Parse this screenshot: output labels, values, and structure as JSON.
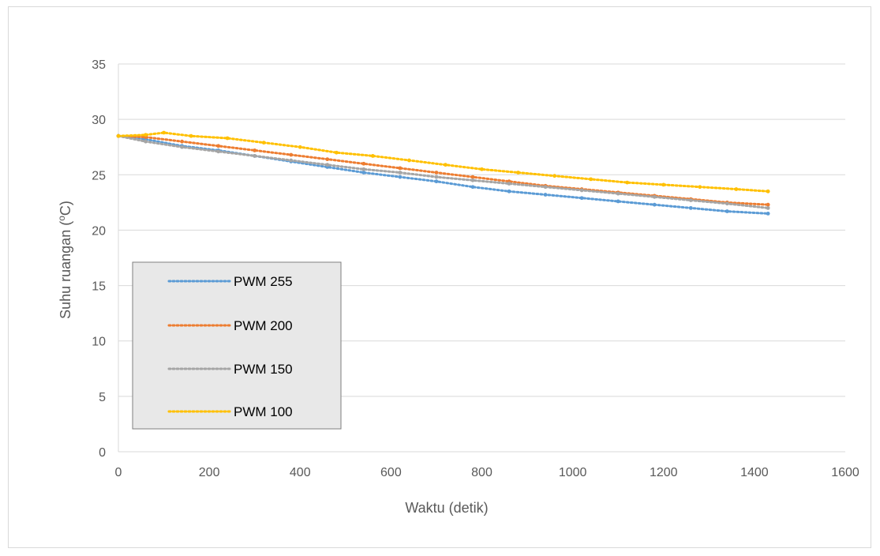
{
  "chart_data": {
    "type": "scatter",
    "title": "",
    "xlabel": "Waktu (detik)",
    "ylabel_parts": [
      "Suhu ruangan (",
      "o",
      "C)"
    ],
    "xlim": [
      0,
      1600
    ],
    "ylim": [
      0,
      35
    ],
    "xticks": [
      0,
      200,
      400,
      600,
      800,
      1000,
      1200,
      1400,
      1600
    ],
    "yticks": [
      0,
      5,
      10,
      15,
      20,
      25,
      30,
      35
    ],
    "grid": "horizontal",
    "legend_position": "left-middle",
    "series": [
      {
        "name": "PWM 255",
        "color": "#5b9bd5",
        "x": [
          0,
          60,
          140,
          220,
          300,
          380,
          460,
          540,
          620,
          700,
          780,
          860,
          940,
          1020,
          1100,
          1180,
          1260,
          1340,
          1430
        ],
        "y": [
          28.5,
          28.2,
          27.6,
          27.2,
          26.7,
          26.2,
          25.7,
          25.2,
          24.8,
          24.4,
          23.9,
          23.5,
          23.2,
          22.9,
          22.6,
          22.3,
          22.0,
          21.7,
          21.5
        ]
      },
      {
        "name": "PWM 200",
        "color": "#ed7d31",
        "x": [
          0,
          60,
          140,
          220,
          300,
          380,
          460,
          540,
          620,
          700,
          780,
          860,
          940,
          1020,
          1100,
          1180,
          1260,
          1340,
          1430
        ],
        "y": [
          28.5,
          28.4,
          28.0,
          27.6,
          27.2,
          26.8,
          26.4,
          26.0,
          25.6,
          25.2,
          24.8,
          24.4,
          24.0,
          23.7,
          23.4,
          23.1,
          22.8,
          22.5,
          22.3
        ]
      },
      {
        "name": "PWM 150",
        "color": "#a5a5a5",
        "x": [
          0,
          60,
          140,
          220,
          300,
          380,
          460,
          540,
          620,
          700,
          780,
          860,
          940,
          1020,
          1100,
          1180,
          1260,
          1340,
          1430
        ],
        "y": [
          28.5,
          28.0,
          27.5,
          27.1,
          26.7,
          26.3,
          25.9,
          25.5,
          25.2,
          24.8,
          24.5,
          24.2,
          23.9,
          23.6,
          23.3,
          23.0,
          22.7,
          22.4,
          22.0
        ]
      },
      {
        "name": "PWM 100",
        "color": "#ffc000",
        "x": [
          0,
          60,
          100,
          160,
          240,
          320,
          400,
          480,
          560,
          640,
          720,
          800,
          880,
          960,
          1040,
          1120,
          1200,
          1280,
          1360,
          1430
        ],
        "y": [
          28.5,
          28.6,
          28.8,
          28.5,
          28.3,
          27.9,
          27.5,
          27.0,
          26.7,
          26.3,
          25.9,
          25.5,
          25.2,
          24.9,
          24.6,
          24.3,
          24.1,
          23.9,
          23.7,
          23.5
        ]
      }
    ]
  }
}
